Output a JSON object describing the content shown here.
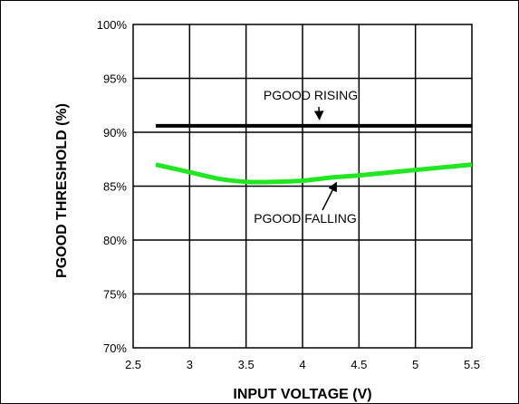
{
  "chart_data": {
    "type": "line",
    "title": "",
    "xlabel": "INPUT VOLTAGE (V)",
    "ylabel": "PGOOD THRESHOLD (%)",
    "xlim": [
      2.5,
      5.5
    ],
    "ylim": [
      70,
      100
    ],
    "x_ticks": [
      2.5,
      3,
      3.5,
      4,
      4.5,
      5,
      5.5
    ],
    "x_tick_labels": [
      "2.5",
      "3",
      "3.5",
      "4",
      "4.5",
      "5",
      "5.5"
    ],
    "y_ticks": [
      70,
      75,
      80,
      85,
      90,
      95,
      100
    ],
    "y_tick_labels": [
      "70%",
      "75%",
      "80%",
      "85%",
      "90%",
      "95%",
      "100%"
    ],
    "grid": true,
    "legend": "none",
    "series": [
      {
        "name": "PGOOD RISING",
        "color": "#000000",
        "x": [
          2.7,
          3.0,
          3.5,
          4.0,
          4.5,
          5.0,
          5.5
        ],
        "y": [
          90.6,
          90.6,
          90.6,
          90.6,
          90.6,
          90.6,
          90.6
        ]
      },
      {
        "name": "PGOOD FALLING",
        "color": "#22e622",
        "x": [
          2.7,
          3.0,
          3.25,
          3.5,
          3.75,
          4.0,
          4.25,
          4.5,
          5.0,
          5.5
        ],
        "y": [
          87.0,
          86.3,
          85.7,
          85.4,
          85.4,
          85.5,
          85.8,
          86.0,
          86.5,
          87.0
        ]
      }
    ],
    "annotations": [
      {
        "text": "PGOOD RISING",
        "series": 0,
        "arrow_to_x": 4.15
      },
      {
        "text": "PGOOD FALLING",
        "series": 1,
        "arrow_to_x": 4.3
      }
    ]
  }
}
